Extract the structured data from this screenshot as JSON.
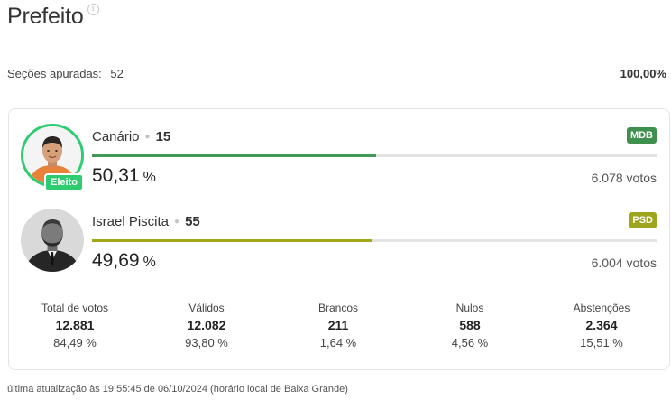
{
  "header": {
    "title": "Prefeito",
    "info_icon": "info-icon"
  },
  "summary": {
    "sections_label": "Seções apuradas:",
    "sections_value": "52",
    "percent": "100,00%"
  },
  "candidates": [
    {
      "name": "Canário",
      "number": "15",
      "party": "MDB",
      "party_color": "#3f8f4f",
      "bar_color": "#3f9a55",
      "percent_value": 50.31,
      "percent_text": "50,31",
      "percent_unit": "%",
      "votes": "6.078 votos",
      "elected_label": "Eleito",
      "winner_color": "#2ecc71"
    },
    {
      "name": "Israel Piscita",
      "number": "55",
      "party": "PSD",
      "party_color": "#9ea51c",
      "bar_color": "#a3a818",
      "percent_value": 49.69,
      "percent_text": "49,69",
      "percent_unit": "%",
      "votes": "6.004 votos"
    }
  ],
  "stats": [
    {
      "label": "Total de votos",
      "value": "12.881",
      "pct": "84,49 %"
    },
    {
      "label": "Válidos",
      "value": "12.082",
      "pct": "93,80 %"
    },
    {
      "label": "Brancos",
      "value": "211",
      "pct": "1,64 %"
    },
    {
      "label": "Nulos",
      "value": "588",
      "pct": "4,56 %"
    },
    {
      "label": "Abstenções",
      "value": "2.364",
      "pct": "15,51 %"
    }
  ],
  "footer": {
    "text": "última atualização às 19:55:45 de 06/10/2024 (horário local de Baixa Grande)"
  }
}
